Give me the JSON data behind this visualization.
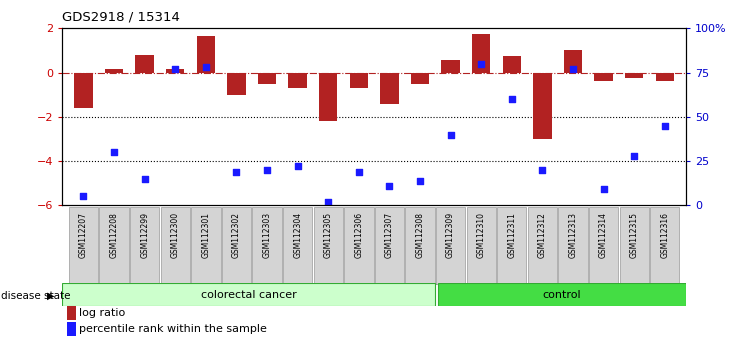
{
  "title": "GDS2918 / 15314",
  "samples": [
    "GSM112207",
    "GSM112208",
    "GSM112299",
    "GSM112300",
    "GSM112301",
    "GSM112302",
    "GSM112303",
    "GSM112304",
    "GSM112305",
    "GSM112306",
    "GSM112307",
    "GSM112308",
    "GSM112309",
    "GSM112310",
    "GSM112311",
    "GSM112312",
    "GSM112313",
    "GSM112314",
    "GSM112315",
    "GSM112316"
  ],
  "log_ratio": [
    -1.6,
    0.15,
    0.8,
    0.15,
    1.65,
    -1.0,
    -0.5,
    -0.7,
    -2.2,
    -0.7,
    -1.4,
    -0.5,
    0.55,
    1.75,
    0.75,
    -3.0,
    1.0,
    -0.4,
    -0.25,
    -0.4
  ],
  "percentile_rank": [
    5,
    30,
    15,
    77,
    78,
    19,
    20,
    22,
    2,
    19,
    11,
    14,
    40,
    80,
    60,
    20,
    77,
    9,
    28,
    45
  ],
  "bar_color": "#b22222",
  "dot_color": "#1a1aff",
  "colorectal_color": "#ccffcc",
  "control_color": "#44dd44",
  "colorectal_samples": 12,
  "control_samples": 8,
  "ylim_left": [
    -6,
    2
  ],
  "ylim_right": [
    0,
    100
  ],
  "yticks_left": [
    2,
    0,
    -2,
    -4,
    -6
  ],
  "yticks_right": [
    100,
    75,
    50,
    25,
    0
  ],
  "ytick_labels_right": [
    "100%",
    "75",
    "50",
    "25",
    "0"
  ],
  "dotted_lines": [
    -2,
    -4
  ],
  "disease_state_label": "disease state",
  "colorectal_label": "colorectal cancer",
  "control_label": "control",
  "legend_bar_label": "log ratio",
  "legend_dot_label": "percentile rank within the sample"
}
